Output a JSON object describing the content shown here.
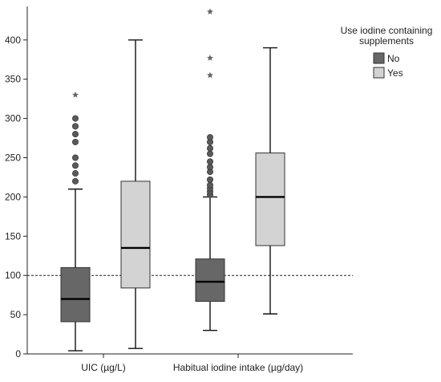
{
  "chart_data": {
    "type": "boxplot",
    "title": "",
    "xlabel": "",
    "ylabel": "",
    "ylim": [
      0,
      440
    ],
    "yticks": [
      0,
      50,
      100,
      150,
      200,
      250,
      300,
      350,
      400
    ],
    "grid": false,
    "reference_line": {
      "y": 100,
      "style": "dashed"
    },
    "categories": [
      "UIC (µg/L)",
      "Habitual iodine intake (µg/day)"
    ],
    "legend": {
      "title": "Use iodine containing supplements",
      "placement": "top-right",
      "entries": [
        {
          "label": "No",
          "color": "#676767"
        },
        {
          "label": "Yes",
          "color": "#d3d3d3"
        }
      ]
    },
    "series": [
      {
        "name": "No",
        "color": "#676767",
        "boxes": [
          {
            "category": "UIC (µg/L)",
            "whisker_low": 4,
            "q1": 41,
            "median": 70,
            "q3": 110,
            "whisker_high": 210,
            "outliers": [
              220,
              230,
              240,
              250,
              270,
              280,
              290,
              300
            ],
            "extremes": [
              330
            ]
          },
          {
            "category": "Habitual iodine intake (µg/day)",
            "whisker_low": 30,
            "q1": 67,
            "median": 92,
            "q3": 121,
            "whisker_high": 200,
            "outliers": [
              203,
              207,
              211,
              215,
              222,
              232,
              238,
              245,
              255,
              262,
              270,
              276
            ],
            "extremes": [
              355,
              377,
              436
            ]
          }
        ]
      },
      {
        "name": "Yes",
        "color": "#d3d3d3",
        "boxes": [
          {
            "category": "UIC (µg/L)",
            "whisker_low": 7,
            "q1": 84,
            "median": 135,
            "q3": 220,
            "whisker_high": 400,
            "outliers": [],
            "extremes": []
          },
          {
            "category": "Habitual iodine intake (µg/day)",
            "whisker_low": 51,
            "q1": 138,
            "median": 200,
            "q3": 256,
            "whisker_high": 390,
            "outliers": [],
            "extremes": []
          }
        ]
      }
    ]
  }
}
